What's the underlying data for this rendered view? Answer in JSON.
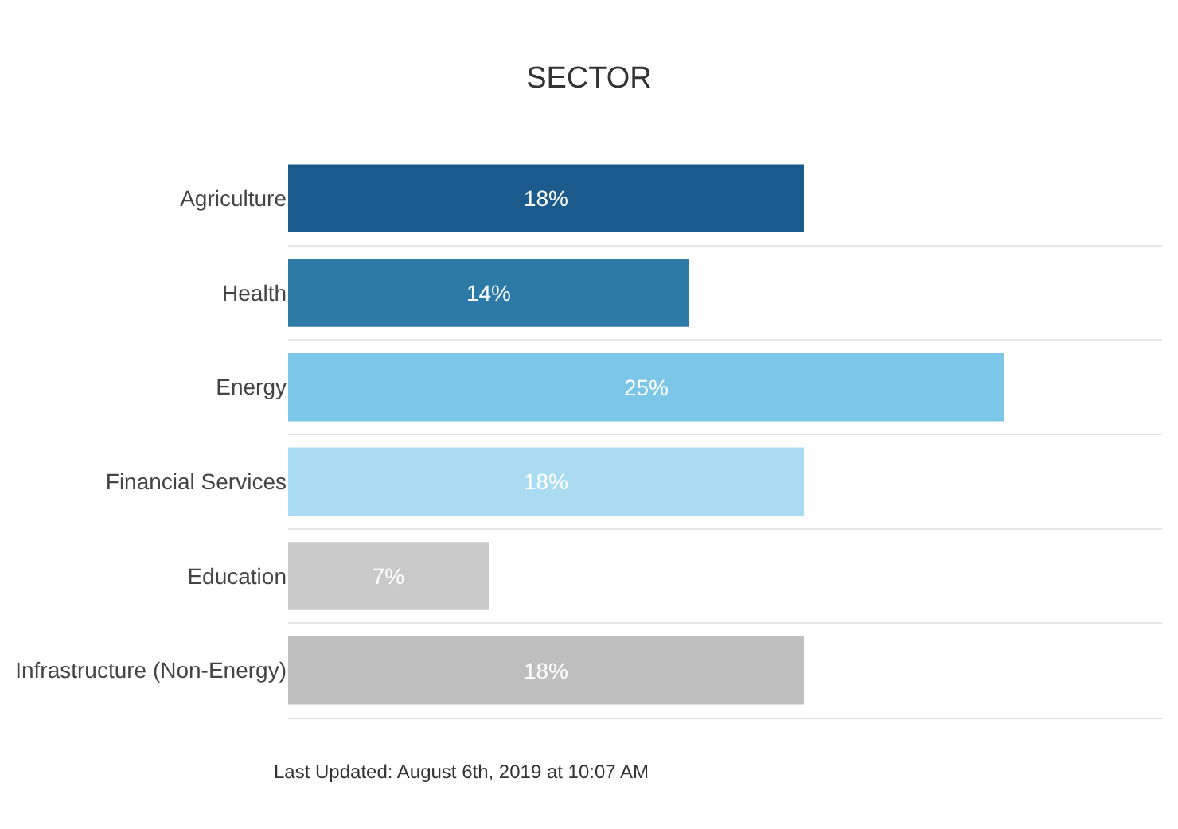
{
  "chart_data": {
    "type": "bar",
    "orientation": "horizontal",
    "title": "SECTOR",
    "categories": [
      "Agriculture",
      "Health",
      "Energy",
      "Financial Services",
      "Education",
      "Infrastructure (Non-Energy)"
    ],
    "values": [
      18,
      14,
      25,
      18,
      7,
      18
    ],
    "value_labels": [
      "18%",
      "14%",
      "25%",
      "18%",
      "7%",
      "18%"
    ],
    "colors": [
      "#1b5a8c",
      "#2c7aa5",
      "#7cc6e8",
      "#a9dcf1",
      "#c9c9c9",
      "#bfbfbf"
    ],
    "xlim": [
      0,
      30.5
    ],
    "grid": "y",
    "tick_labels": "y",
    "annotations": [
      "Last Updated: August 6th, 2019 at 10:07 AM"
    ]
  }
}
